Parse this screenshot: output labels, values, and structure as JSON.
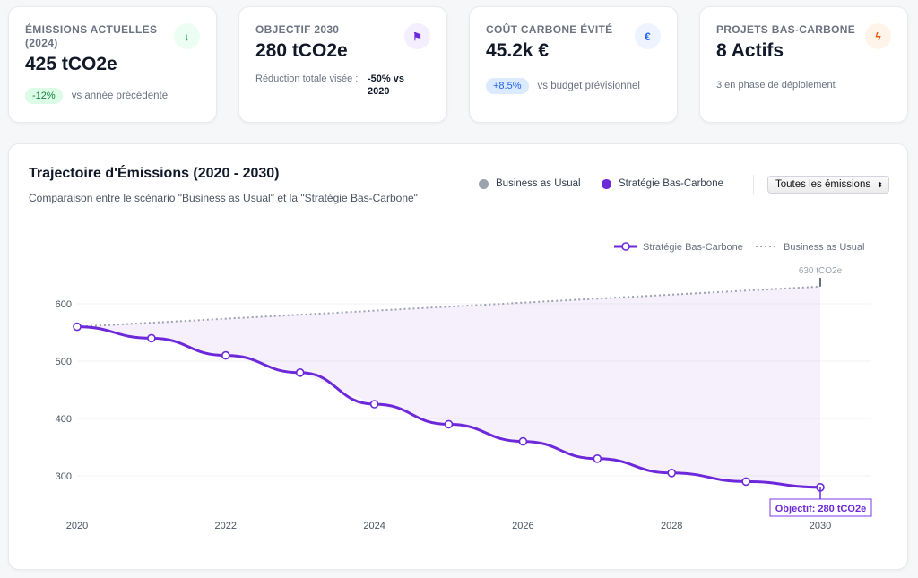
{
  "cards": [
    {
      "label": "ÉMISSIONS ACTUELLES (2024)",
      "value": "425 tCO2e",
      "icon": "arrow-down-icon",
      "badge": "-12%",
      "note": "vs année précédente"
    },
    {
      "label": "OBJECTIF 2030",
      "value": "280 tCO2e",
      "icon": "flag-icon",
      "note": "Réduction totale visée :",
      "note_value": "-50% vs 2020"
    },
    {
      "label": "COÛT CARBONE ÉVITÉ",
      "value": "45.2k €",
      "icon": "euro-icon",
      "icon_glyph": "€",
      "badge": "+8.5%",
      "note": "vs budget prévisionnel"
    },
    {
      "label": "PROJETS BAS-CARBONE",
      "value": "8 Actifs",
      "icon": "bolt-icon",
      "note": "3 en phase de déploiement"
    }
  ],
  "panel": {
    "title": "Trajectoire d'Émissions (2020 - 2030)",
    "subtitle": "Comparaison entre le scénario \"Business as Usual\" et la \"Stratégie Bas-Carbone\"",
    "legend": [
      "Business as Usual",
      "Stratégie Bas-Carbone"
    ],
    "select": "Toutes les émissions"
  },
  "colors": {
    "strategy": "#6d28d9",
    "bau": "#9ca3af"
  },
  "chart_data": {
    "type": "line",
    "x": [
      2020,
      2021,
      2022,
      2023,
      2024,
      2025,
      2026,
      2027,
      2028,
      2029,
      2030
    ],
    "series": [
      {
        "name": "Stratégie Bas-Carbone",
        "values": [
          560,
          540,
          510,
          480,
          425,
          390,
          360,
          330,
          305,
          290,
          280
        ]
      },
      {
        "name": "Business as Usual",
        "values": [
          560,
          567,
          574,
          581,
          588,
          595,
          602,
          609,
          616,
          623,
          630
        ]
      }
    ],
    "yticks": [
      300,
      400,
      500,
      600
    ],
    "xticks": [
      2020,
      2022,
      2024,
      2026,
      2028,
      2030
    ],
    "ylim": [
      270,
      640
    ],
    "legend": [
      "Stratégie Bas-Carbone",
      "Business as Usual"
    ],
    "annotations": {
      "bau_end": "630 tCO2e",
      "target": "Objectif: 280 tCO2e"
    }
  }
}
